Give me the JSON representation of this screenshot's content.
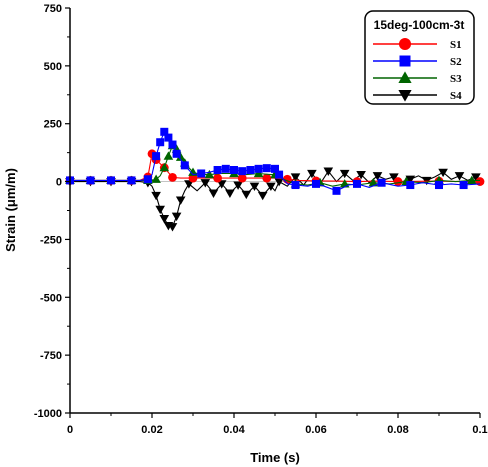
{
  "chart_data": {
    "type": "line",
    "title": "",
    "xlabel": "Time (s)",
    "ylabel": "Strain (μm/m)",
    "xlim": [
      0,
      0.1
    ],
    "ylim": [
      -1000,
      750
    ],
    "xticks": [
      "0",
      "0.02",
      "0.04",
      "0.06",
      "0.08",
      "0.1"
    ],
    "xtick_values": [
      0,
      0.02,
      0.04,
      0.06,
      0.08,
      0.1
    ],
    "yticks": [
      "750",
      "500",
      "250",
      "0",
      "-250",
      "-500",
      "-750",
      "-1000"
    ],
    "ytick_values": [
      750,
      500,
      250,
      0,
      -250,
      -500,
      -750,
      -1000
    ],
    "grid": false,
    "legend": {
      "title": "15deg-100cm-3t",
      "position": "top-right"
    },
    "series": [
      {
        "name": "S1",
        "color": "#ff0000",
        "marker": "circle",
        "x": [
          0,
          0.002,
          0.005,
          0.008,
          0.01,
          0.012,
          0.015,
          0.017,
          0.019,
          0.02,
          0.021,
          0.023,
          0.025,
          0.027,
          0.03,
          0.033,
          0.036,
          0.039,
          0.042,
          0.045,
          0.048,
          0.05,
          0.053,
          0.056,
          0.06,
          0.065,
          0.07,
          0.075,
          0.08,
          0.085,
          0.09,
          0.095,
          0.1
        ],
        "y": [
          5,
          5,
          5,
          5,
          5,
          5,
          5,
          5,
          20,
          120,
          95,
          60,
          18,
          15,
          15,
          15,
          15,
          15,
          15,
          15,
          15,
          15,
          10,
          5,
          3,
          2,
          0,
          2,
          0,
          1,
          2,
          0,
          0
        ]
      },
      {
        "name": "S2",
        "color": "#0000ff",
        "marker": "square",
        "x": [
          0,
          0.002,
          0.005,
          0.008,
          0.01,
          0.012,
          0.015,
          0.017,
          0.019,
          0.02,
          0.021,
          0.022,
          0.023,
          0.024,
          0.025,
          0.026,
          0.028,
          0.03,
          0.032,
          0.034,
          0.036,
          0.038,
          0.04,
          0.042,
          0.044,
          0.046,
          0.048,
          0.05,
          0.051,
          0.053,
          0.055,
          0.058,
          0.06,
          0.062,
          0.065,
          0.068,
          0.07,
          0.073,
          0.076,
          0.08,
          0.083,
          0.086,
          0.09,
          0.093,
          0.096,
          0.1
        ],
        "y": [
          5,
          5,
          5,
          5,
          5,
          5,
          5,
          5,
          10,
          30,
          110,
          170,
          215,
          190,
          160,
          120,
          70,
          30,
          35,
          40,
          50,
          55,
          50,
          45,
          50,
          55,
          58,
          55,
          30,
          -10,
          -15,
          -20,
          -10,
          -20,
          -40,
          -15,
          -10,
          -25,
          -5,
          -20,
          -15,
          -5,
          -15,
          -10,
          -15,
          -10
        ]
      },
      {
        "name": "S3",
        "color": "#006400",
        "marker": "triangle-up",
        "x": [
          0,
          0.002,
          0.005,
          0.008,
          0.01,
          0.012,
          0.015,
          0.017,
          0.019,
          0.02,
          0.021,
          0.022,
          0.023,
          0.024,
          0.025,
          0.026,
          0.027,
          0.028,
          0.03,
          0.032,
          0.034,
          0.037,
          0.04,
          0.043,
          0.046,
          0.049,
          0.05,
          0.052,
          0.055,
          0.058,
          0.061,
          0.064,
          0.067,
          0.07,
          0.074,
          0.078,
          0.082,
          0.086,
          0.09,
          0.094,
          0.098,
          0.1
        ],
        "y": [
          5,
          5,
          5,
          5,
          5,
          5,
          5,
          5,
          5,
          5,
          10,
          25,
          60,
          110,
          155,
          140,
          105,
          80,
          40,
          30,
          30,
          35,
          35,
          30,
          35,
          30,
          30,
          10,
          -10,
          -15,
          -5,
          -20,
          -10,
          -15,
          -5,
          -10,
          0,
          -5,
          5,
          0,
          5,
          5
        ]
      },
      {
        "name": "S4",
        "color": "#000000",
        "marker": "triangle-down",
        "x": [
          0,
          0.002,
          0.005,
          0.008,
          0.01,
          0.012,
          0.015,
          0.017,
          0.019,
          0.02,
          0.021,
          0.022,
          0.023,
          0.024,
          0.025,
          0.026,
          0.027,
          0.028,
          0.029,
          0.031,
          0.033,
          0.035,
          0.037,
          0.039,
          0.041,
          0.043,
          0.045,
          0.047,
          0.049,
          0.05,
          0.051,
          0.053,
          0.055,
          0.057,
          0.059,
          0.061,
          0.063,
          0.065,
          0.067,
          0.069,
          0.071,
          0.073,
          0.075,
          0.077,
          0.079,
          0.081,
          0.083,
          0.085,
          0.087,
          0.089,
          0.091,
          0.093,
          0.095,
          0.097,
          0.099,
          0.1
        ],
        "y": [
          0,
          0,
          0,
          0,
          0,
          0,
          0,
          0,
          -5,
          -20,
          -60,
          -120,
          -160,
          -190,
          -195,
          -150,
          -80,
          -40,
          -10,
          -40,
          -5,
          -50,
          -10,
          -50,
          -15,
          -55,
          -20,
          -60,
          -20,
          -40,
          0,
          -20,
          20,
          -15,
          35,
          -10,
          45,
          0,
          35,
          5,
          30,
          -5,
          25,
          10,
          20,
          0,
          10,
          25,
          5,
          20,
          40,
          10,
          25,
          5,
          20,
          10
        ]
      }
    ]
  }
}
